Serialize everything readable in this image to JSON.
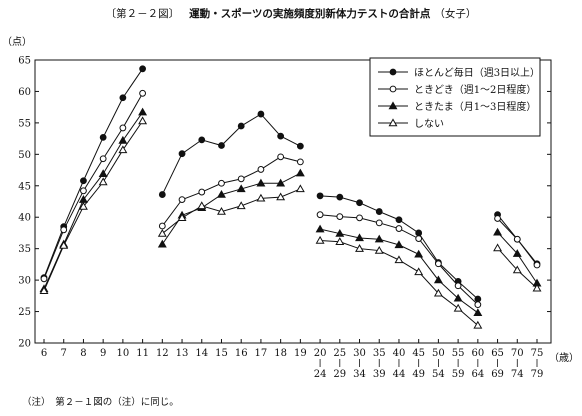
{
  "title": {
    "figure_number": "〔第２－２図〕",
    "main": "運動・スポーツの実施頻度別新体力テストの合計点",
    "sub": "（女子）"
  },
  "note": "（注）　第２－１図の（注）に同じ。",
  "chart_data": {
    "type": "line",
    "ylabel": "（点）",
    "xlabel": "（歳）",
    "ylim": [
      20,
      65
    ],
    "yticks": [
      20,
      25,
      30,
      35,
      40,
      45,
      50,
      55,
      60,
      65
    ],
    "categories": [
      {
        "top": "6"
      },
      {
        "top": "7"
      },
      {
        "top": "8"
      },
      {
        "top": "9"
      },
      {
        "top": "10"
      },
      {
        "top": "11"
      },
      {
        "top": "12"
      },
      {
        "top": "13"
      },
      {
        "top": "14"
      },
      {
        "top": "15"
      },
      {
        "top": "16"
      },
      {
        "top": "17"
      },
      {
        "top": "18"
      },
      {
        "top": "19"
      },
      {
        "top": "20",
        "bottom": "24"
      },
      {
        "top": "25",
        "bottom": "29"
      },
      {
        "top": "30",
        "bottom": "34"
      },
      {
        "top": "35",
        "bottom": "39"
      },
      {
        "top": "40",
        "bottom": "44"
      },
      {
        "top": "45",
        "bottom": "49"
      },
      {
        "top": "50",
        "bottom": "54"
      },
      {
        "top": "55",
        "bottom": "59"
      },
      {
        "top": "60",
        "bottom": "64"
      },
      {
        "top": "65",
        "bottom": "69"
      },
      {
        "top": "70",
        "bottom": "74"
      },
      {
        "top": "75",
        "bottom": "79"
      }
    ],
    "segments": [
      [
        0,
        5
      ],
      [
        6,
        13
      ],
      [
        14,
        22
      ],
      [
        23,
        25
      ]
    ],
    "legend_position": "top-right",
    "series": [
      {
        "name": "ほとんど毎日（週3日以上）",
        "marker": "filled-circle",
        "values": [
          30.4,
          38.5,
          45.8,
          52.7,
          59.0,
          63.6,
          43.6,
          50.1,
          52.3,
          51.4,
          54.5,
          56.4,
          52.9,
          51.3,
          43.4,
          43.2,
          42.3,
          40.9,
          39.6,
          37.5,
          32.8,
          29.8,
          27.0,
          40.4,
          36.5,
          32.6
        ]
      },
      {
        "name": "ときどき（週1～2日程度）",
        "marker": "open-circle",
        "values": [
          30.2,
          38.0,
          44.2,
          49.3,
          54.2,
          59.7,
          38.6,
          42.8,
          44.0,
          45.4,
          46.1,
          47.6,
          49.6,
          48.8,
          40.4,
          40.1,
          39.9,
          39.1,
          38.2,
          36.6,
          32.6,
          29.1,
          26.1,
          39.8,
          36.5,
          32.4
        ]
      },
      {
        "name": "ときたま（月1～3日程度）",
        "marker": "filled-triangle",
        "values": [
          28.6,
          35.7,
          42.8,
          46.9,
          52.2,
          56.7,
          35.7,
          40.3,
          41.5,
          43.6,
          44.5,
          45.4,
          45.4,
          47.0,
          38.1,
          37.4,
          36.7,
          36.5,
          35.6,
          34.1,
          30.0,
          27.1,
          24.8,
          37.6,
          34.2,
          29.5
        ]
      },
      {
        "name": "しない",
        "marker": "open-triangle",
        "values": [
          28.3,
          35.5,
          41.7,
          45.6,
          50.7,
          55.3,
          37.4,
          39.9,
          41.8,
          40.9,
          41.8,
          43.0,
          43.2,
          44.5,
          36.3,
          36.1,
          35.0,
          34.7,
          33.2,
          31.3,
          27.9,
          25.5,
          22.8,
          35.1,
          31.6,
          28.7
        ]
      }
    ]
  }
}
